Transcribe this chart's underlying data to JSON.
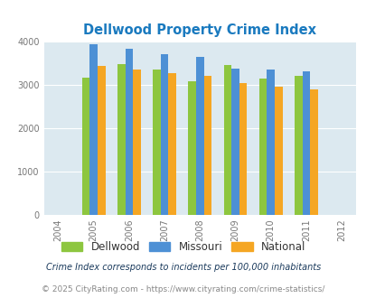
{
  "title": "Dellwood Property Crime Index",
  "title_color": "#1a7abf",
  "years": [
    2005,
    2006,
    2007,
    2008,
    2009,
    2010,
    2011
  ],
  "x_tick_years": [
    2004,
    2005,
    2006,
    2007,
    2008,
    2009,
    2010,
    2011,
    2012
  ],
  "dellwood": [
    3160,
    3490,
    3350,
    3080,
    3460,
    3150,
    3220
  ],
  "missouri": [
    3940,
    3840,
    3720,
    3640,
    3380,
    3360,
    3320
  ],
  "national": [
    3430,
    3360,
    3280,
    3220,
    3050,
    2950,
    2900
  ],
  "bar_colors": {
    "dellwood": "#8dc63f",
    "missouri": "#4d90d5",
    "national": "#f5a623"
  },
  "ylim": [
    0,
    4000
  ],
  "yticks": [
    0,
    1000,
    2000,
    3000,
    4000
  ],
  "bg_color": "#dce9f0",
  "grid_color": "#ffffff",
  "legend_labels": [
    "Dellwood",
    "Missouri",
    "National"
  ],
  "footnote1": "Crime Index corresponds to incidents per 100,000 inhabitants",
  "footnote2": "© 2025 CityRating.com - https://www.cityrating.com/crime-statistics/",
  "footnote1_color": "#1a3a5c",
  "footnote2_color": "#888888",
  "bar_width": 0.22
}
